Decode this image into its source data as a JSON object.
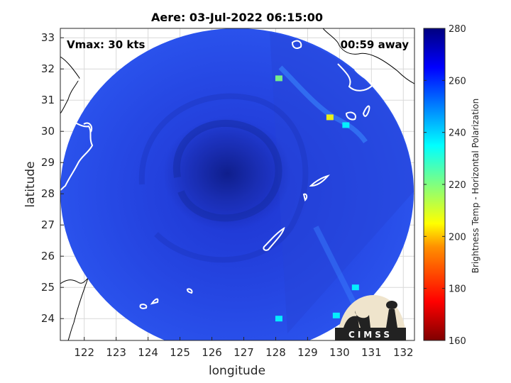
{
  "chart_data": {
    "type": "heatmap",
    "title": "Aere: 03-Jul-2022 06:15:00",
    "xlabel": "longitude",
    "ylabel": "latitude",
    "xlim": [
      121.25,
      132.35
    ],
    "ylim": [
      23.3,
      33.3
    ],
    "xticks": [
      "122",
      "123",
      "124",
      "125",
      "126",
      "127",
      "128",
      "129",
      "130",
      "131",
      "132"
    ],
    "yticks": [
      "24",
      "25",
      "26",
      "27",
      "28",
      "29",
      "30",
      "31",
      "32",
      "33"
    ],
    "grid": true,
    "annotations": {
      "vmax": "Vmax: 30 kts",
      "time_away": "00:59 away"
    },
    "colorbar": {
      "label": "Brightness Temp - Horizontal Polarization",
      "range": [
        160,
        280
      ],
      "ticks": [
        "280",
        "260",
        "240",
        "220",
        "200",
        "180",
        "160"
      ],
      "colormap": [
        "#7f0000",
        "#ff0000",
        "#ff8000",
        "#ffff00",
        "#80ff80",
        "#00ffff",
        "#0080ff",
        "#0000ff",
        "#00007f"
      ]
    },
    "swath_center": {
      "lon": 127.2,
      "lat": 28.2
    },
    "storm_center": {
      "lon": 126.9,
      "lat": 28.6
    },
    "hotspots": [
      {
        "lon": 129.7,
        "lat": 30.45,
        "value": 205
      },
      {
        "lon": 128.1,
        "lat": 31.7,
        "value": 215
      },
      {
        "lon": 130.2,
        "lat": 30.2,
        "value": 235
      },
      {
        "lon": 130.5,
        "lat": 25.0,
        "value": 240
      },
      {
        "lon": 129.9,
        "lat": 24.1,
        "value": 240
      },
      {
        "lon": 128.1,
        "lat": 24.0,
        "value": 238
      }
    ],
    "logo": "CIMSS"
  }
}
